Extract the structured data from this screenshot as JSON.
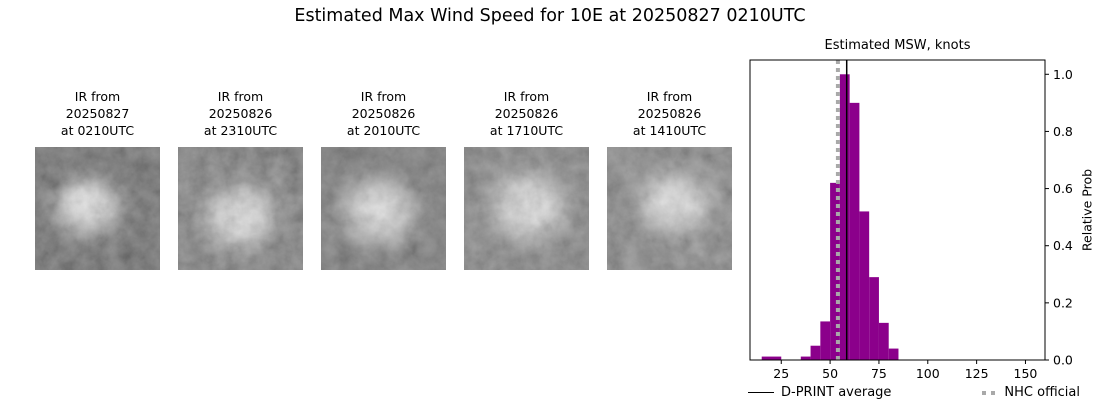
{
  "title": "Estimated Max Wind Speed for 10E at 20250827 0210UTC",
  "panels": [
    {
      "line1": "IR from",
      "line2": "20250827",
      "line3": "at 0210UTC"
    },
    {
      "line1": "IR from",
      "line2": "20250826",
      "line3": "at 2310UTC"
    },
    {
      "line1": "IR from",
      "line2": "20250826",
      "line3": "at 2010UTC"
    },
    {
      "line1": "IR from",
      "line2": "20250826",
      "line3": "at 1710UTC"
    },
    {
      "line1": "IR from",
      "line2": "20250826",
      "line3": "at 1410UTC"
    }
  ],
  "chart_data": {
    "type": "bar",
    "title": "Estimated MSW, knots",
    "ylabel": "Relative Prob",
    "xlabel": "",
    "xlim": [
      9,
      160
    ],
    "ylim": [
      0,
      1.05
    ],
    "xticks": [
      25,
      50,
      75,
      100,
      125,
      150
    ],
    "yticks": [
      0,
      0.2,
      0.4,
      0.6,
      0.8,
      1
    ],
    "grid": false,
    "legend_position": "bottom",
    "bar_color": "#8B008B",
    "dprint_line_color": "#000000",
    "nhc_line_color": "#a9a9a9",
    "bins": [
      {
        "x0": 15,
        "x1": 25,
        "h": 0.012
      },
      {
        "x0": 35,
        "x1": 40,
        "h": 0.012
      },
      {
        "x0": 40,
        "x1": 45,
        "h": 0.05
      },
      {
        "x0": 45,
        "x1": 50,
        "h": 0.135
      },
      {
        "x0": 50,
        "x1": 55,
        "h": 0.62
      },
      {
        "x0": 55,
        "x1": 60,
        "h": 1.0
      },
      {
        "x0": 60,
        "x1": 65,
        "h": 0.9
      },
      {
        "x0": 65,
        "x1": 70,
        "h": 0.52
      },
      {
        "x0": 70,
        "x1": 75,
        "h": 0.29
      },
      {
        "x0": 75,
        "x1": 80,
        "h": 0.13
      },
      {
        "x0": 80,
        "x1": 85,
        "h": 0.04
      }
    ],
    "dprint_average": 58.5,
    "nhc_official": 54,
    "legend": {
      "dprint": "D-PRINT average",
      "nhc": "NHC official"
    }
  }
}
